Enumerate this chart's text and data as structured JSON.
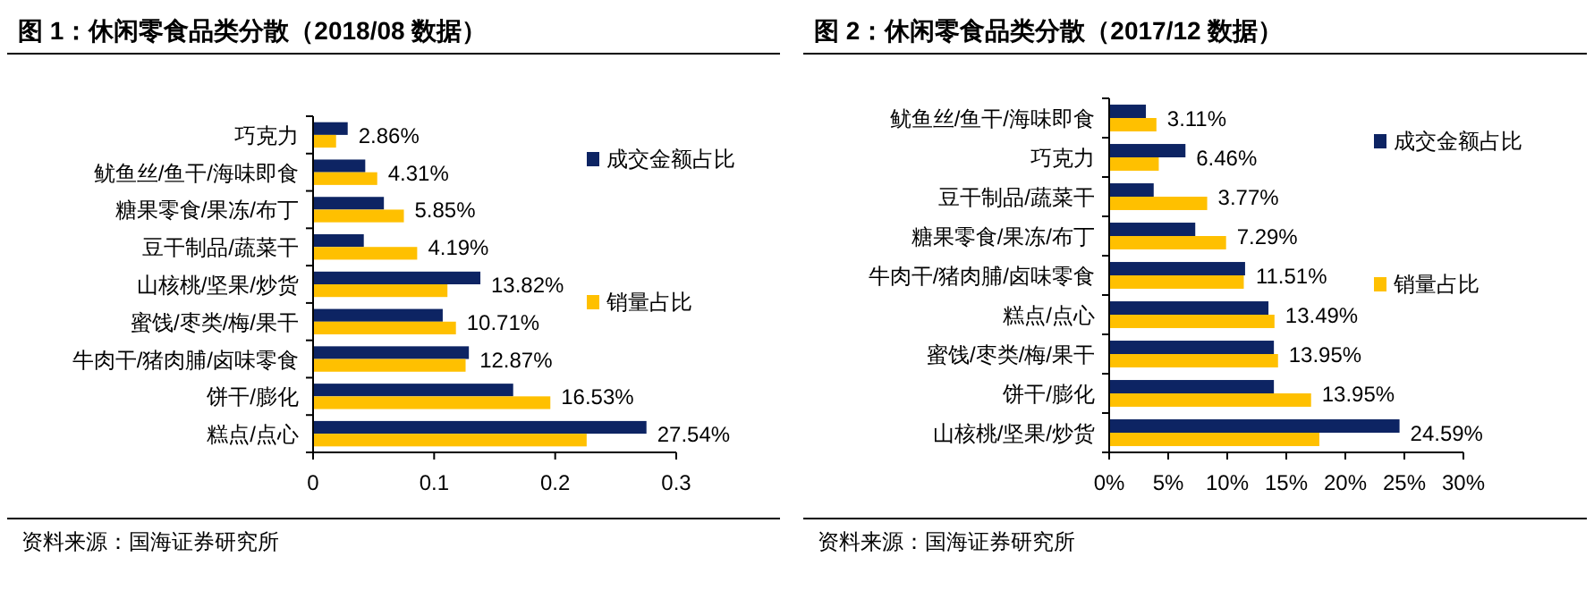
{
  "chart_data": [
    {
      "type": "bar",
      "orientation": "horizontal",
      "title": "图 1：休闲零食品类分散（2018/08 数据）",
      "annotations": [
        "资料来源：国海证券研究所"
      ],
      "categories": [
        "巧克力",
        "鱿鱼丝/鱼干/海味即食",
        "糖果零食/果冻/布丁",
        "豆干制品/蔬菜干",
        "山核桃/坚果/炒货",
        "蜜饯/枣类/梅/果干",
        "牛肉干/猪肉脯/卤味零食",
        "饼干/膨化",
        "糕点/点心"
      ],
      "series": [
        {
          "name": "成交金额占比",
          "color": "#0d2463",
          "values": [
            0.0286,
            0.0431,
            0.0585,
            0.0419,
            0.1382,
            0.1071,
            0.1287,
            0.1653,
            0.2754
          ],
          "value_labels": [
            "2.86%",
            "4.31%",
            "5.85%",
            "4.19%",
            "13.82%",
            "10.71%",
            "12.87%",
            "16.53%",
            "27.54%"
          ]
        },
        {
          "name": "销量占比",
          "color": "#ffc000",
          "values": [
            0.019,
            0.053,
            0.075,
            0.086,
            0.111,
            0.118,
            0.126,
            0.196,
            0.226
          ]
        }
      ],
      "xlim": [
        0,
        0.3
      ],
      "xticks": [
        0,
        0.1,
        0.2,
        0.3
      ],
      "legend": "right",
      "grid": false
    },
    {
      "type": "bar",
      "orientation": "horizontal",
      "title": "图 2：休闲零食品类分散（2017/12 数据）",
      "annotations": [
        "资料来源：国海证券研究所"
      ],
      "categories": [
        "鱿鱼丝/鱼干/海味即食",
        "巧克力",
        "豆干制品/蔬菜干",
        "糖果零食/果冻/布丁",
        "牛肉干/猪肉脯/卤味零食",
        "糕点/点心",
        "蜜饯/枣类/梅/果干",
        "饼干/膨化",
        "山核桃/坚果/炒货"
      ],
      "series": [
        {
          "name": "成交金额占比",
          "color": "#0d2463",
          "values": [
            3.11,
            6.46,
            3.77,
            7.29,
            11.51,
            13.49,
            13.95,
            13.95,
            24.59
          ],
          "value_labels": [
            "3.11%",
            "6.46%",
            "3.77%",
            "7.29%",
            "11.51%",
            "13.49%",
            "13.95%",
            "13.95%",
            "24.59%"
          ]
        },
        {
          "name": "销量占比",
          "color": "#ffc000",
          "values": [
            4.0,
            4.2,
            8.3,
            9.9,
            11.4,
            14.0,
            14.3,
            17.1,
            17.8
          ]
        }
      ],
      "xlim": [
        0,
        30
      ],
      "xticks": [
        {
          "value": 0,
          "label": "0%"
        },
        {
          "value": 5,
          "label": "5%"
        },
        {
          "value": 10,
          "label": "10%"
        },
        {
          "value": 15,
          "label": "15%"
        },
        {
          "value": 20,
          "label": "20%"
        },
        {
          "value": 25,
          "label": "25%"
        },
        {
          "value": 30,
          "label": "30%"
        }
      ],
      "legend": "right",
      "grid": false
    }
  ]
}
